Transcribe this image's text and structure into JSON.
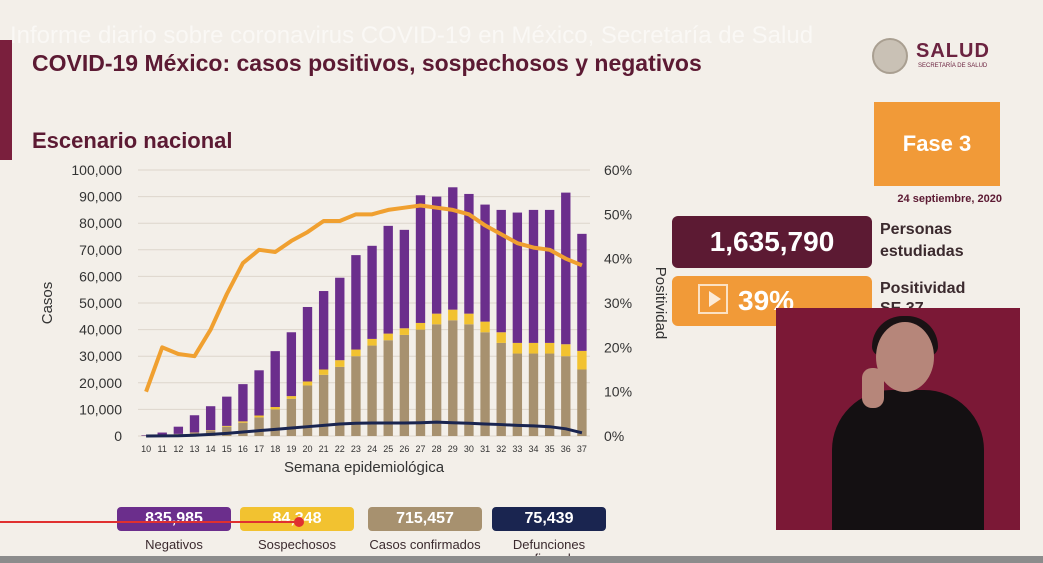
{
  "banner_text": "Informe diario sobre coronavirus COVID-19 en México, Secretaría de Salud",
  "title": "COVID-19 México: casos positivos, sospechosos y negativos",
  "subtitle": "Escenario nacional",
  "logo": {
    "name": "SALUD",
    "sub": "SECRETARÍA DE SALUD"
  },
  "phase": "Fase 3",
  "report_date": "24 septiembre, 2020",
  "people_studied": {
    "value": "1,635,790",
    "label_line1": "Personas",
    "label_line2": "estudiadas"
  },
  "positivity": {
    "value": "39%",
    "label_line1": "Positividad",
    "label_line2": "SE 37"
  },
  "legend": [
    {
      "value": "835,985",
      "label": "Negativos",
      "color": "#6b2e8c"
    },
    {
      "value": "84,348",
      "label": "Sospechosos",
      "color": "#f2c230"
    },
    {
      "value": "715,457",
      "label": "Casos confirmados",
      "color": "#a7916f"
    },
    {
      "value": "75,439",
      "label": "Defunciones confirmadas",
      "color": "#1a2550"
    }
  ],
  "chart_data": {
    "type": "bar",
    "xlabel": "Semana epidemiológica",
    "ylabel": "Casos",
    "y2label": "Positividad",
    "ylim": [
      0,
      100000
    ],
    "y2lim": [
      0,
      60
    ],
    "yticks": [
      "0",
      "10,000",
      "20,000",
      "30,000",
      "40,000",
      "50,000",
      "60,000",
      "70,000",
      "80,000",
      "90,000",
      "100,000"
    ],
    "y2ticks": [
      "0%",
      "10%",
      "20%",
      "30%",
      "40%",
      "50%",
      "60%"
    ],
    "categories": [
      "10",
      "11",
      "12",
      "13",
      "14",
      "15",
      "16",
      "17",
      "18",
      "19",
      "20",
      "21",
      "22",
      "23",
      "24",
      "25",
      "26",
      "27",
      "28",
      "29",
      "30",
      "31",
      "32",
      "33",
      "34",
      "35",
      "36",
      "37"
    ],
    "series": [
      {
        "name": "Casos confirmados",
        "kind": "bar",
        "color": "#a7916f",
        "values": [
          100,
          400,
          800,
          1200,
          2000,
          3500,
          5000,
          7000,
          10000,
          14000,
          19000,
          23000,
          26000,
          30000,
          34000,
          36000,
          38000,
          40000,
          42000,
          43500,
          42000,
          39000,
          35000,
          31000,
          31000,
          31000,
          30000,
          25000
        ]
      },
      {
        "name": "Sospechosos",
        "kind": "bar",
        "color": "#f2c230",
        "values": [
          0,
          0,
          0,
          100,
          200,
          300,
          500,
          700,
          900,
          1000,
          1500,
          2000,
          2500,
          2500,
          2500,
          2500,
          2500,
          2500,
          4000,
          4000,
          4000,
          4000,
          4000,
          4000,
          4000,
          4000,
          4500,
          7000
        ]
      },
      {
        "name": "Negativos",
        "kind": "bar",
        "color": "#6b2e8c",
        "values": [
          200,
          900,
          2700,
          6500,
          9000,
          11000,
          14000,
          17000,
          21000,
          24000,
          28000,
          29500,
          31000,
          35500,
          35000,
          40500,
          37000,
          48000,
          44000,
          46000,
          45000,
          44000,
          46000,
          49000,
          50000,
          50000,
          57000,
          44000
        ]
      },
      {
        "name": "Defunciones confirmadas",
        "kind": "line",
        "axis": "left",
        "color": "#1a2550",
        "values": [
          0,
          50,
          100,
          300,
          600,
          1000,
          1500,
          2000,
          2500,
          3000,
          3500,
          4000,
          4500,
          4800,
          4900,
          4900,
          4900,
          5000,
          5200,
          5000,
          4800,
          4500,
          4300,
          4000,
          3800,
          3500,
          2700,
          1200
        ]
      },
      {
        "name": "Positividad",
        "kind": "line",
        "axis": "right",
        "color": "#f0a030",
        "values": [
          10,
          20,
          18.5,
          18,
          24,
          32,
          39,
          42,
          41.5,
          44,
          46,
          48.5,
          48.5,
          50,
          50,
          51,
          51.5,
          52,
          51.5,
          51,
          50,
          47.5,
          45.5,
          43.5,
          42.5,
          42,
          40,
          38.5
        ]
      }
    ],
    "grid": true,
    "legend_position": "bottom"
  }
}
